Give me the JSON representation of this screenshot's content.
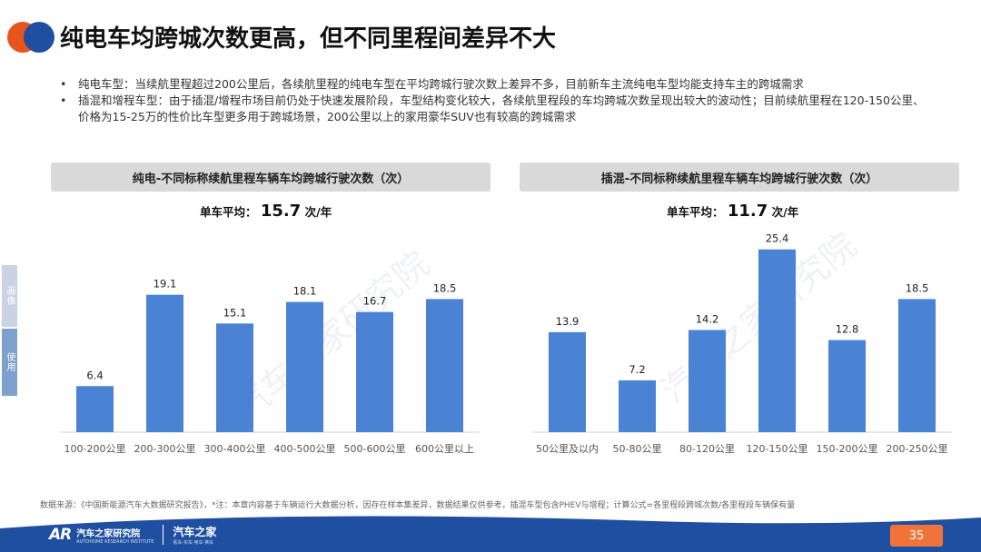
{
  "page": {
    "title": "纯电车均跨城次数更高，但不同里程间差异不大",
    "bullets": [
      "纯电车型：当续航里程超过200公里后，各续航里程的纯电车型在平均跨城行驶次数上差异不多，目前新车主流纯电车型均能支持车主的跨城需求",
      "插混和增程车型：由于插混/增程市场目前仍处于快速发展阶段，车型结构变化较大，各续航里程段的车均跨城次数呈现出较大的波动性；目前续航里程在120-150公里、价格为15-25万的性价比车型更多用于跨城场景，200公里以上的家用豪华SUV也有较高的跨城需求"
    ],
    "side_tabs": [
      "画像",
      "使用"
    ],
    "watermark": "汽车之家研究院",
    "footnote": "数据来源：《中国新能源汽车大数据研究报告》，*注：本章内容基于车辆运行大数据分析，因存在样本集差异，数据结果仅供参考，插混车型包含PHEV与增程；计算公式=各里程段跨城次数/各里程段车辆保有量",
    "brand": {
      "mark": "AR",
      "name": "汽车之家研究院",
      "sub": "AUTOHOME RESEARCH INSTITUTE",
      "name2": "汽车之家",
      "sub2": "看车·买车·用车·换车"
    },
    "page_number": "35",
    "colors": {
      "bar": "#4a82d4",
      "orange": "#e8541e",
      "navy": "#1f4fa0"
    }
  },
  "chart_data": [
    {
      "type": "bar",
      "title": "纯电-不同标称续航里程车辆车均跨城行驶次数（次）",
      "avg_label": "单车平均：",
      "avg_value": "15.7",
      "avg_unit": "次/年",
      "categories": [
        "100-200公里",
        "200-300公里",
        "300-400公里",
        "400-500公里",
        "500-600公里",
        "600公里以上"
      ],
      "values": [
        6.4,
        19.1,
        15.1,
        18.1,
        16.7,
        18.5
      ],
      "ylim": [
        0,
        26.5
      ],
      "grid": false
    },
    {
      "type": "bar",
      "title": "插混-不同标称续航里程车辆车均跨城行驶次数（次）",
      "avg_label": "单车平均：",
      "avg_value": "11.7",
      "avg_unit": "次/年",
      "categories": [
        "50公里及以内",
        "50-80公里",
        "80-120公里",
        "120-150公里",
        "150-200公里",
        "200-250公里"
      ],
      "values": [
        13.9,
        7.2,
        14.2,
        25.4,
        12.8,
        18.5
      ],
      "ylim": [
        0,
        26.5
      ],
      "grid": false
    }
  ]
}
